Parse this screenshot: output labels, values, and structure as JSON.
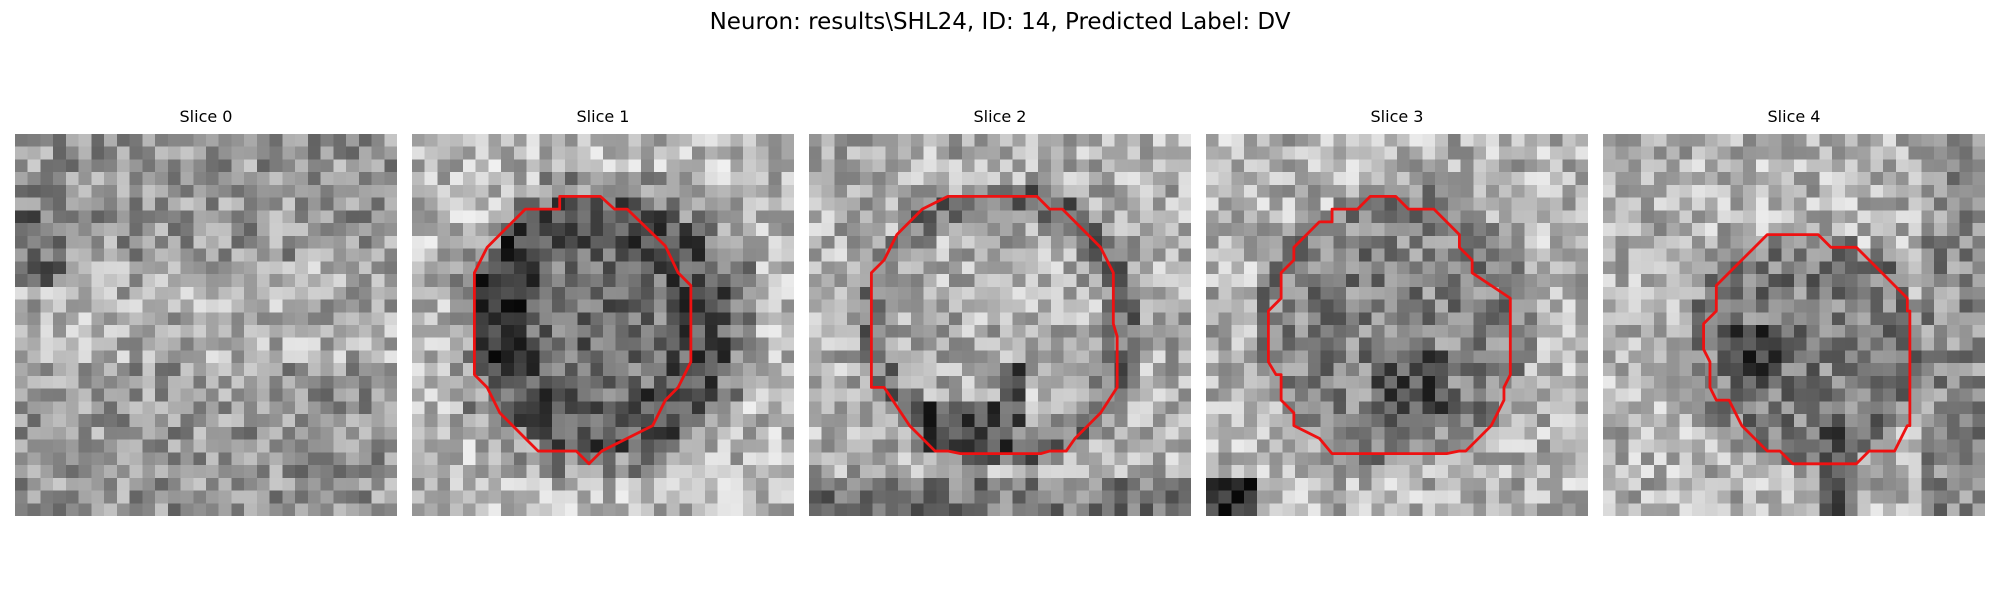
{
  "figure": {
    "title": "Neuron: results\\SHL24, ID: 14, Predicted Label: DV"
  },
  "contour_color": "#ee1111",
  "panels": [
    {
      "title": "Slice 0",
      "seed": 11,
      "pattern": "noise",
      "has_contour": false
    },
    {
      "title": "Slice 1",
      "seed": 23,
      "pattern": "dark-ring",
      "has_contour": true
    },
    {
      "title": "Slice 2",
      "seed": 37,
      "pattern": "bright-center",
      "has_contour": true
    },
    {
      "title": "Slice 3",
      "seed": 41,
      "pattern": "mottled-center",
      "has_contour": true
    },
    {
      "title": "Slice 4",
      "seed": 53,
      "pattern": "small-dark",
      "has_contour": true
    }
  ]
}
